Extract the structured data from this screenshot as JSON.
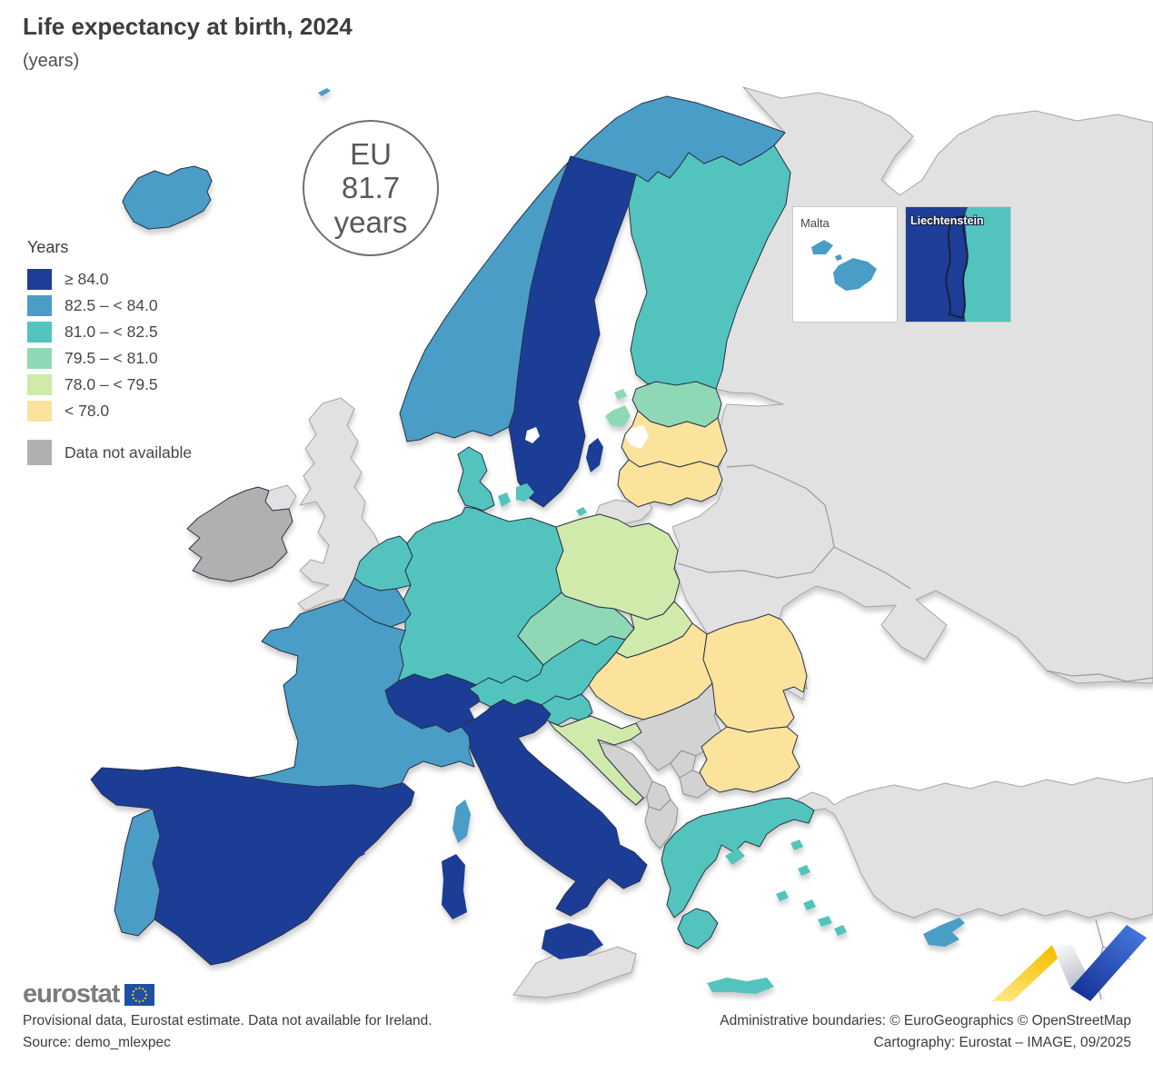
{
  "title": "Life expectancy at birth, 2024",
  "subtitle": "(years)",
  "eu_badge": {
    "line1": "EU",
    "line2": "81.7",
    "line3": "years"
  },
  "legend": {
    "title": "Years",
    "classes": [
      {
        "id": "c1",
        "label": "≥ 84.0",
        "color": "#1e3d96"
      },
      {
        "id": "c2",
        "label": "82.5 – < 84.0",
        "color": "#4a9dc6"
      },
      {
        "id": "c3",
        "label": "81.0 – < 82.5",
        "color": "#53c4bd"
      },
      {
        "id": "c4",
        "label": "79.5 – < 81.0",
        "color": "#8fd8b6"
      },
      {
        "id": "c5",
        "label": "78.0 – < 79.5",
        "color": "#cfeaab"
      },
      {
        "id": "c6",
        "label": "< 78.0",
        "color": "#fbe39c"
      }
    ],
    "no_data": {
      "id": "na",
      "label": "Data not available",
      "color": "#b0b0b0"
    }
  },
  "insets": {
    "malta": {
      "label": "Malta"
    },
    "liechtenstein": {
      "label": "Liechtenstein"
    }
  },
  "footer": {
    "logo_text": "eurostat",
    "note1": "Provisional data, Eurostat estimate. Data not available for Ireland.",
    "note2": "Source: demo_mlexpec",
    "attribution1": "Administrative boundaries: © EuroGeographics © OpenStreetMap",
    "attribution2": "Cartography: Eurostat – IMAGE, 09/2025"
  },
  "map": {
    "class_colors": {
      "c1": "#1e3d96",
      "c2": "#4a9dc6",
      "c3": "#53c4bd",
      "c4": "#8fd8b6",
      "c5": "#cfeaab",
      "c6": "#fbe39c",
      "na": "#b0b0b0",
      "noneu": "#e1e1e1",
      "noneu2": "#d2d2d2"
    },
    "countries": {
      "iceland": "c2",
      "janmayen": "c2",
      "norway": "c2",
      "sweden": "c1",
      "gotland": "c1",
      "finland": "c3",
      "estonia": "c4",
      "saaremaa": "c4",
      "hiiumaa": "c4",
      "latvia": "c6",
      "lithuania": "c6",
      "kaliningrad": "noneu",
      "denmark": "c3",
      "funen": "c3",
      "zealand": "c3",
      "bornholm": "c3",
      "uk": "noneu",
      "n_ireland": "noneu",
      "ireland": "na",
      "netherlands": "c3",
      "belgium": "c2",
      "luxembourg": "c2",
      "germany": "c3",
      "poland": "c5",
      "czechia": "c4",
      "slovakia": "c5",
      "austria": "c3",
      "switzerland": "c1",
      "hungary": "c6",
      "slovenia": "c3",
      "croatia": "c5",
      "bosnia": "noneu2",
      "serbia": "noneu2",
      "montenegro": "noneu2",
      "kosovo": "noneu2",
      "north_macedonia": "noneu2",
      "albania": "noneu2",
      "romania": "c6",
      "bulgaria": "c6",
      "greece": "c3",
      "peloponnese": "c3",
      "crete": "c3",
      "euboea": "c3",
      "aegean1": "c3",
      "aegean2": "c3",
      "aegean3": "c3",
      "aegean4": "c3",
      "aegean5": "c3",
      "rhodes": "c3",
      "france": "c2",
      "corsica": "c2",
      "spain": "c1",
      "mallorca": "c1",
      "menorca": "c1",
      "ibiza": "c1",
      "portugal": "c2",
      "italy": "c1",
      "sicily": "c1",
      "sardinia": "c1",
      "cyprus": "c2",
      "east_landmass": "noneu",
      "turkey": "noneu",
      "north_africa": "noneu",
      "malta_inset": "c2",
      "liechtenstein_inset": "c1"
    }
  }
}
